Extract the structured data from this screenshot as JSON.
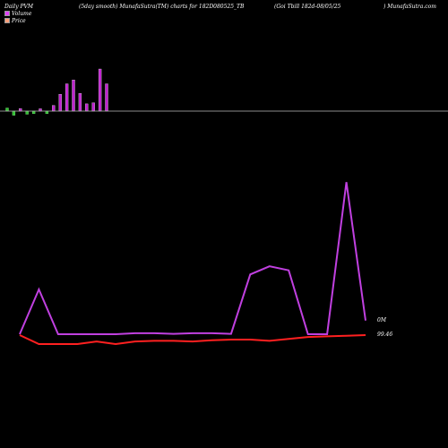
{
  "header": {
    "left": "Daily PVM",
    "center_left": "(5day smooth) MunafaSutra(TM) charts for 182D080525_TB",
    "center_right": "(Goi  Tbill 182d-08/05/25",
    "right": ") MunafaSutra.com"
  },
  "legend": {
    "volume_label": "Volume",
    "price_label": "Price",
    "volume_color": "#e040fb",
    "price_color": "#ffa07a"
  },
  "colors": {
    "background": "#000000",
    "volume_up": "#c020d0",
    "volume_down": "#30c030",
    "price_line": "#ff2020",
    "smooth_line": "#c040e0"
  },
  "chart_data": [
    {
      "type": "bar",
      "name": "volume",
      "values": [
        1.2,
        -1.6,
        1.0,
        -1.2,
        -1.0,
        0.9,
        -1.0,
        2.2,
        6.5,
        10.5,
        12.0,
        6.8,
        2.8,
        3.2,
        16.2,
        10.5
      ],
      "signs": [
        "down",
        "down",
        "up",
        "down",
        "down",
        "up",
        "down",
        "up",
        "up",
        "up",
        "up",
        "up",
        "up",
        "up",
        "up",
        "up"
      ]
    },
    {
      "type": "line",
      "name": "smoothed",
      "values": [
        0,
        6.6,
        0,
        0,
        0,
        0,
        0.15,
        0.15,
        0.05,
        0.15,
        0.15,
        0.05,
        8.8,
        10.0,
        9.4,
        0,
        0,
        22.4,
        2.0
      ],
      "annotation": "0M"
    },
    {
      "type": "line",
      "name": "price",
      "values": [
        99.46,
        99.39,
        99.39,
        99.39,
        99.41,
        99.39,
        99.41,
        99.415,
        99.415,
        99.41,
        99.42,
        99.425,
        99.425,
        99.415,
        99.43,
        99.445,
        99.45,
        99.455,
        99.46
      ],
      "annotation": "99.46"
    }
  ]
}
